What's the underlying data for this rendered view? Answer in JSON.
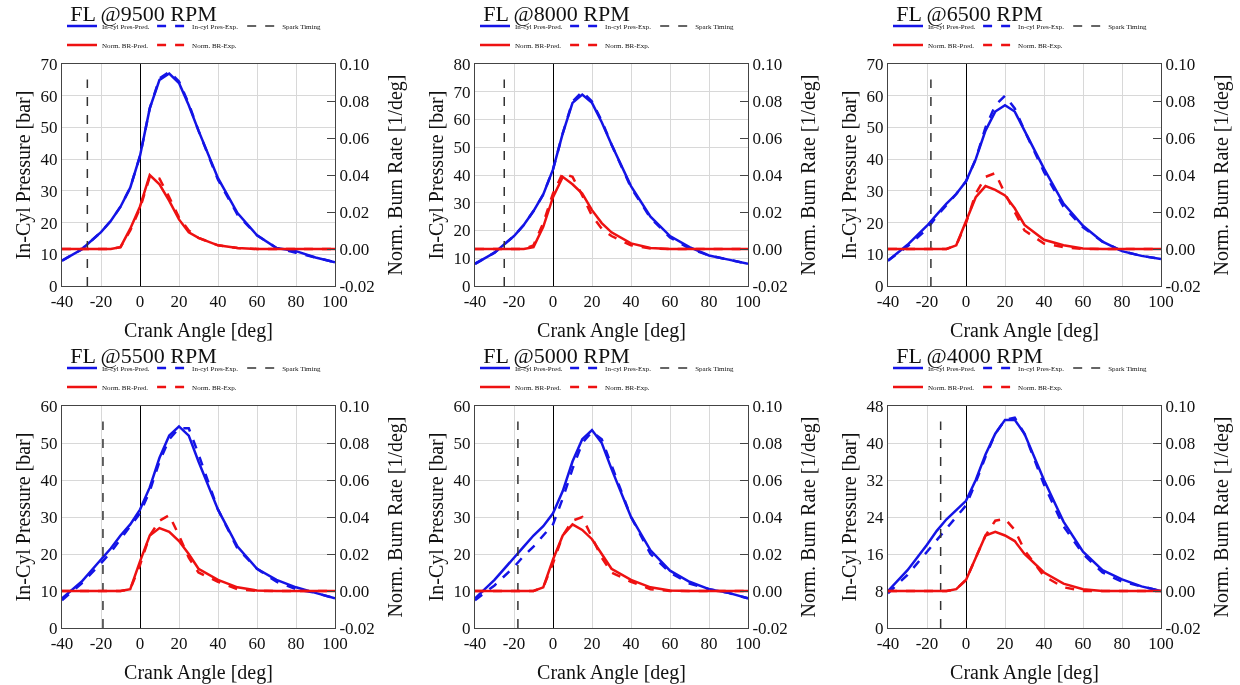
{
  "chart_data": [
    {
      "type": "line",
      "title": "FL @9500 RPM",
      "xlabel": "Crank Angle [deg]",
      "ylabel": "In-Cyl Pressure [bar]",
      "y2label": "Norm. Burn Rate [1/deg]",
      "grid": true,
      "legend": "top",
      "x": [
        -40,
        -30,
        -20,
        -15,
        -10,
        -5,
        0,
        5,
        10,
        15,
        20,
        25,
        30,
        40,
        50,
        60,
        70,
        80,
        90,
        100
      ],
      "xlim": [
        -40,
        100
      ],
      "xticks": [
        -40,
        -20,
        0,
        20,
        40,
        60,
        80,
        100
      ],
      "ylim": [
        0,
        70
      ],
      "yticks": [
        0,
        10,
        20,
        30,
        40,
        50,
        60,
        70
      ],
      "y2lim": [
        -0.02,
        0.1
      ],
      "y2ticks": [
        {
          "value": -0.02,
          "label": "-0.02"
        },
        {
          "value": 0,
          "label": "0.00"
        },
        {
          "value": 0.02,
          "label": "0.02"
        },
        {
          "value": 0.04,
          "label": "0.04"
        },
        {
          "value": 0.06,
          "label": "0.06"
        },
        {
          "value": 0.08,
          "label": "0.08"
        },
        {
          "value": 0.1,
          "label": "0.10"
        }
      ],
      "series": [
        {
          "name": "In-cyl Pres-Pred.",
          "color": "#1414e6",
          "line_style": "solid",
          "values": [
            8,
            11.5,
            17,
            20.5,
            25,
            31,
            41,
            56,
            65,
            67,
            64,
            57,
            49,
            34,
            23,
            16,
            12,
            11,
            9,
            7.5
          ]
        },
        {
          "name": "In-cyl Pres-Exp.",
          "color": "#1414e6",
          "line_style": "dashed",
          "values": [
            8,
            11.5,
            17,
            20.5,
            25,
            31,
            41,
            56,
            65.5,
            67.5,
            64.5,
            57.5,
            49,
            33.5,
            22.5,
            16,
            12,
            10.5,
            9,
            7.5
          ]
        },
        {
          "name": "Norm. BR-Pred.",
          "color": "#ee1111",
          "line_style": "solid",
          "axis": "y2",
          "values": [
            0,
            0,
            0,
            0,
            0.001,
            0.011,
            0.023,
            0.04,
            0.035,
            0.026,
            0.016,
            0.009,
            0.006,
            0.002,
            0.0006,
            0,
            0,
            0,
            0,
            0
          ]
        },
        {
          "name": "Norm. BR-Exp.",
          "color": "#ee1111",
          "line_style": "dashed",
          "axis": "y2",
          "values": [
            0,
            0,
            0,
            0,
            0.001,
            0.01,
            0.022,
            0.039,
            0.038,
            0.028,
            0.017,
            0.01,
            0.006,
            0.002,
            0.0005,
            0,
            0,
            0,
            0,
            0
          ]
        }
      ],
      "ref_lines": [
        {
          "axis": "x",
          "value": -27,
          "label": "Spark Timing",
          "color": "#333333",
          "line_style": "dashed"
        }
      ]
    },
    {
      "type": "line",
      "title": "FL @8000 RPM",
      "xlabel": "Crank Angle [deg]",
      "ylabel": "In-Cyl Pressure [bar]",
      "y2label": "Norm. Burn Rate [1/deg]",
      "grid": true,
      "legend": "top",
      "x": [
        -40,
        -30,
        -20,
        -15,
        -10,
        -5,
        0,
        5,
        10,
        15,
        20,
        25,
        30,
        40,
        50,
        60,
        70,
        80,
        90,
        100
      ],
      "xlim": [
        -40,
        100
      ],
      "xticks": [
        -40,
        -20,
        0,
        20,
        40,
        60,
        80,
        100
      ],
      "ylim": [
        0,
        80
      ],
      "yticks": [
        0,
        10,
        20,
        30,
        40,
        50,
        60,
        70,
        80
      ],
      "y2lim": [
        -0.02,
        0.1
      ],
      "y2ticks": [
        {
          "value": -0.02,
          "label": "-0.02"
        },
        {
          "value": 0,
          "label": "0.00"
        },
        {
          "value": 0.02,
          "label": "0.02"
        },
        {
          "value": 0.04,
          "label": "0.04"
        },
        {
          "value": 0.06,
          "label": "0.06"
        },
        {
          "value": 0.08,
          "label": "0.08"
        },
        {
          "value": 0.1,
          "label": "0.10"
        }
      ],
      "series": [
        {
          "name": "In-cyl Pres-Pred.",
          "color": "#1414e6",
          "line_style": "solid",
          "values": [
            8,
            12,
            18,
            22,
            27,
            33,
            42,
            55,
            66,
            69,
            66,
            59,
            51,
            36,
            25,
            18,
            14,
            11,
            9.5,
            8
          ]
        },
        {
          "name": "In-cyl Pres-Exp.",
          "color": "#1414e6",
          "line_style": "dashed",
          "values": [
            8,
            12,
            18,
            22,
            27,
            33,
            42,
            55,
            66.5,
            70,
            66.5,
            59.5,
            51,
            35.5,
            24.5,
            17.5,
            13.5,
            11,
            9.5,
            8
          ]
        },
        {
          "name": "Norm. BR-Pred.",
          "color": "#ee1111",
          "line_style": "solid",
          "axis": "y2",
          "values": [
            0,
            0,
            0,
            0,
            0.001,
            0.012,
            0.028,
            0.039,
            0.035,
            0.03,
            0.021,
            0.014,
            0.009,
            0.003,
            0.0005,
            0,
            0,
            0,
            0,
            0
          ]
        },
        {
          "name": "Norm. BR-Exp.",
          "color": "#ee1111",
          "line_style": "dashed",
          "axis": "y2",
          "values": [
            0,
            0,
            0,
            0,
            0.002,
            0.014,
            0.03,
            0.041,
            0.039,
            0.029,
            0.018,
            0.011,
            0.007,
            0.002,
            0.0003,
            0,
            0,
            0,
            0,
            0
          ]
        }
      ],
      "ref_lines": [
        {
          "axis": "x",
          "value": -25,
          "label": "Spark Timing",
          "color": "#333333",
          "line_style": "dashed"
        }
      ]
    },
    {
      "type": "line",
      "title": "FL @6500 RPM",
      "xlabel": "Crank Angle [deg]",
      "ylabel": "In-Cyl Pressure [bar]",
      "y2label": "Norm. Burn Rate [1/deg]",
      "grid": true,
      "legend": "top",
      "x": [
        -40,
        -30,
        -20,
        -15,
        -10,
        -5,
        0,
        5,
        10,
        15,
        20,
        25,
        30,
        40,
        50,
        60,
        70,
        80,
        90,
        100
      ],
      "xlim": [
        -40,
        100
      ],
      "xticks": [
        -40,
        -20,
        0,
        20,
        40,
        60,
        80,
        100
      ],
      "ylim": [
        0,
        70
      ],
      "yticks": [
        0,
        10,
        20,
        30,
        40,
        50,
        60,
        70
      ],
      "y2lim": [
        -0.02,
        0.1
      ],
      "y2ticks": [
        {
          "value": -0.02,
          "label": "-0.02"
        },
        {
          "value": 0,
          "label": "0.00"
        },
        {
          "value": 0.02,
          "label": "0.02"
        },
        {
          "value": 0.04,
          "label": "0.04"
        },
        {
          "value": 0.06,
          "label": "0.06"
        },
        {
          "value": 0.08,
          "label": "0.08"
        },
        {
          "value": 0.1,
          "label": "0.10"
        }
      ],
      "series": [
        {
          "name": "In-cyl Pres-Pred.",
          "color": "#1414e6",
          "line_style": "solid",
          "values": [
            8,
            13,
            19,
            22.5,
            26,
            29,
            33,
            40,
            49,
            55,
            57,
            55,
            49,
            37,
            26,
            19,
            14,
            11,
            9.5,
            8.5
          ]
        },
        {
          "name": "In-cyl Pres-Exp.",
          "color": "#1414e6",
          "line_style": "dashed",
          "values": [
            8,
            12.5,
            18,
            22,
            25.5,
            29,
            33,
            40,
            50,
            57,
            60,
            56,
            49,
            36,
            25,
            18.5,
            14,
            11,
            9.5,
            8.5
          ]
        },
        {
          "name": "Norm. BR-Pred.",
          "color": "#ee1111",
          "line_style": "solid",
          "axis": "y2",
          "values": [
            0,
            0,
            0,
            0,
            0,
            0.002,
            0.015,
            0.028,
            0.034,
            0.032,
            0.029,
            0.022,
            0.013,
            0.005,
            0.002,
            0.0003,
            0,
            0,
            0,
            0
          ]
        },
        {
          "name": "Norm. BR-Exp.",
          "color": "#ee1111",
          "line_style": "dashed",
          "axis": "y2",
          "values": [
            0,
            0,
            0,
            0,
            0,
            0.002,
            0.014,
            0.03,
            0.039,
            0.041,
            0.03,
            0.02,
            0.01,
            0.003,
            0.001,
            0,
            0,
            0,
            0,
            0
          ]
        }
      ],
      "ref_lines": [
        {
          "axis": "x",
          "value": -18,
          "label": "Spark Timing",
          "color": "#333333",
          "line_style": "dashed"
        }
      ]
    },
    {
      "type": "line",
      "title": "FL @5500 RPM",
      "xlabel": "Crank Angle [deg]",
      "ylabel": "In-Cyl Pressure [bar]",
      "y2label": "Norm. Burn Rate [1/deg]",
      "grid": true,
      "legend": "top",
      "x": [
        -40,
        -30,
        -20,
        -15,
        -10,
        -5,
        0,
        5,
        10,
        15,
        20,
        25,
        30,
        40,
        50,
        60,
        70,
        80,
        90,
        100
      ],
      "xlim": [
        -40,
        100
      ],
      "xticks": [
        -40,
        -20,
        0,
        20,
        40,
        60,
        80,
        100
      ],
      "ylim": [
        0,
        60
      ],
      "yticks": [
        0,
        10,
        20,
        30,
        40,
        50,
        60
      ],
      "y2lim": [
        -0.02,
        0.1
      ],
      "y2ticks": [
        {
          "value": -0.02,
          "label": "-0.02"
        },
        {
          "value": 0,
          "label": "0.00"
        },
        {
          "value": 0.02,
          "label": "0.02"
        },
        {
          "value": 0.04,
          "label": "0.04"
        },
        {
          "value": 0.06,
          "label": "0.06"
        },
        {
          "value": 0.08,
          "label": "0.08"
        },
        {
          "value": 0.1,
          "label": "0.10"
        }
      ],
      "series": [
        {
          "name": "In-cyl Pres-Pred.",
          "color": "#1414e6",
          "line_style": "solid",
          "values": [
            8,
            12.5,
            18.5,
            21.5,
            25,
            28,
            32,
            38,
            46,
            52,
            54.5,
            52,
            45,
            32,
            22,
            16,
            13,
            11,
            9.5,
            8
          ]
        },
        {
          "name": "In-cyl Pres-Exp.",
          "color": "#1414e6",
          "line_style": "dashed",
          "values": [
            7.5,
            12,
            17.5,
            20.5,
            24,
            27.5,
            31,
            37,
            45,
            51,
            54,
            54,
            47,
            32,
            21.5,
            16,
            12.5,
            10.5,
            9.5,
            8
          ]
        },
        {
          "name": "Norm. BR-Pred.",
          "color": "#ee1111",
          "line_style": "solid",
          "axis": "y2",
          "values": [
            0,
            0,
            0,
            0,
            0,
            0.001,
            0.016,
            0.03,
            0.034,
            0.032,
            0.027,
            0.02,
            0.012,
            0.006,
            0.002,
            0.0003,
            0,
            0,
            0,
            0
          ]
        },
        {
          "name": "Norm. BR-Exp.",
          "color": "#ee1111",
          "line_style": "dashed",
          "axis": "y2",
          "values": [
            0,
            0,
            0,
            0,
            0,
            0.001,
            0.014,
            0.03,
            0.038,
            0.041,
            0.03,
            0.018,
            0.01,
            0.005,
            0.001,
            0,
            0,
            0,
            0,
            0
          ]
        }
      ],
      "ref_lines": [
        {
          "axis": "x",
          "value": -19,
          "label": "Spark Timing",
          "color": "#333333",
          "line_style": "dashed"
        }
      ]
    },
    {
      "type": "line",
      "title": "FL @5000 RPM",
      "xlabel": "Crank Angle [deg]",
      "ylabel": "In-Cyl Pressure [bar]",
      "y2label": "Norm. Burn Rate [1/deg]",
      "grid": true,
      "legend": "top",
      "x": [
        -40,
        -30,
        -20,
        -15,
        -10,
        -5,
        0,
        5,
        10,
        15,
        20,
        25,
        30,
        40,
        50,
        60,
        70,
        80,
        90,
        100
      ],
      "xlim": [
        -40,
        100
      ],
      "xticks": [
        -40,
        -20,
        0,
        20,
        40,
        60,
        80,
        100
      ],
      "ylim": [
        0,
        60
      ],
      "yticks": [
        0,
        10,
        20,
        30,
        40,
        50,
        60
      ],
      "y2lim": [
        -0.02,
        0.1
      ],
      "y2ticks": [
        {
          "value": -0.02,
          "label": "-0.02"
        },
        {
          "value": 0,
          "label": "0.00"
        },
        {
          "value": 0.02,
          "label": "0.02"
        },
        {
          "value": 0.04,
          "label": "0.04"
        },
        {
          "value": 0.06,
          "label": "0.06"
        },
        {
          "value": 0.08,
          "label": "0.08"
        },
        {
          "value": 0.1,
          "label": "0.10"
        }
      ],
      "series": [
        {
          "name": "In-cyl Pres-Pred.",
          "color": "#1414e6",
          "line_style": "solid",
          "values": [
            8,
            13,
            19,
            22,
            25,
            27.5,
            31,
            37,
            45,
            51,
            53.5,
            50,
            43,
            30,
            21,
            15.5,
            12.5,
            10.5,
            9.5,
            8
          ]
        },
        {
          "name": "In-cyl Pres-Exp.",
          "color": "#1414e6",
          "line_style": "dashed",
          "values": [
            7.5,
            11.5,
            16.5,
            19.5,
            22,
            25,
            28,
            35,
            43,
            50,
            53,
            51,
            44,
            30,
            20,
            15,
            12,
            10.5,
            9.5,
            8
          ]
        },
        {
          "name": "Norm. BR-Pred.",
          "color": "#ee1111",
          "line_style": "solid",
          "axis": "y2",
          "values": [
            0,
            0,
            0,
            0,
            0,
            0.002,
            0.017,
            0.03,
            0.036,
            0.033,
            0.028,
            0.02,
            0.012,
            0.006,
            0.002,
            0.0003,
            0,
            0,
            0,
            0
          ]
        },
        {
          "name": "Norm. BR-Exp.",
          "color": "#ee1111",
          "line_style": "dashed",
          "axis": "y2",
          "values": [
            0,
            0,
            0,
            0,
            0,
            0.002,
            0.015,
            0.03,
            0.038,
            0.04,
            0.029,
            0.018,
            0.01,
            0.005,
            0.001,
            0,
            0,
            0,
            0,
            0
          ]
        }
      ],
      "ref_lines": [
        {
          "axis": "x",
          "value": -18,
          "label": "Spark Timing",
          "color": "#333333",
          "line_style": "dashed"
        }
      ]
    },
    {
      "type": "line",
      "title": "FL @4000 RPM",
      "xlabel": "Crank Angle [deg]",
      "ylabel": "In-Cyl Pressure [bar]",
      "y2label": "Norm. Burn Rate [1/deg]",
      "grid": true,
      "legend": "top",
      "x": [
        -40,
        -30,
        -20,
        -15,
        -10,
        -5,
        0,
        5,
        10,
        15,
        20,
        25,
        30,
        40,
        50,
        60,
        70,
        80,
        90,
        100
      ],
      "xlim": [
        -40,
        100
      ],
      "xticks": [
        -40,
        -20,
        0,
        20,
        40,
        60,
        80,
        100
      ],
      "ylim": [
        0,
        48
      ],
      "yticks": [
        0,
        8,
        16,
        24,
        32,
        40,
        48
      ],
      "y2lim": [
        -0.02,
        0.1
      ],
      "y2ticks": [
        {
          "value": -0.02,
          "label": "-0.02"
        },
        {
          "value": 0,
          "label": "0.00"
        },
        {
          "value": 0.02,
          "label": "0.02"
        },
        {
          "value": 0.04,
          "label": "0.04"
        },
        {
          "value": 0.06,
          "label": "0.06"
        },
        {
          "value": 0.08,
          "label": "0.08"
        },
        {
          "value": 0.1,
          "label": "0.10"
        }
      ],
      "series": [
        {
          "name": "In-cyl Pres-Pred.",
          "color": "#1414e6",
          "line_style": "solid",
          "values": [
            8,
            12.5,
            18,
            21,
            23.5,
            25.5,
            27.5,
            32,
            37.5,
            42,
            45,
            45,
            42,
            32,
            23,
            16.5,
            12.5,
            10.5,
            9,
            8
          ]
        },
        {
          "name": "In-cyl Pres-Exp.",
          "color": "#1414e6",
          "line_style": "dashed",
          "values": [
            7.5,
            11.5,
            16.5,
            19,
            21.5,
            24,
            26.5,
            31.5,
            37,
            42,
            45,
            45.5,
            42,
            31,
            22,
            16,
            12,
            10,
            9,
            8
          ]
        },
        {
          "name": "Norm. BR-Pred.",
          "color": "#ee1111",
          "line_style": "solid",
          "axis": "y2",
          "values": [
            0,
            0,
            0,
            0,
            0,
            0.001,
            0.006,
            0.018,
            0.03,
            0.032,
            0.03,
            0.027,
            0.02,
            0.01,
            0.004,
            0.001,
            0,
            0,
            0,
            0
          ]
        },
        {
          "name": "Norm. BR-Exp.",
          "color": "#ee1111",
          "line_style": "dashed",
          "axis": "y2",
          "values": [
            0,
            0,
            0,
            0,
            0,
            0.001,
            0.006,
            0.018,
            0.03,
            0.038,
            0.039,
            0.033,
            0.022,
            0.008,
            0.002,
            0,
            0,
            0,
            0,
            0
          ]
        }
      ],
      "ref_lines": [
        {
          "axis": "x",
          "value": -13,
          "label": "Spark Timing",
          "color": "#333333",
          "line_style": "dashed"
        }
      ]
    }
  ]
}
